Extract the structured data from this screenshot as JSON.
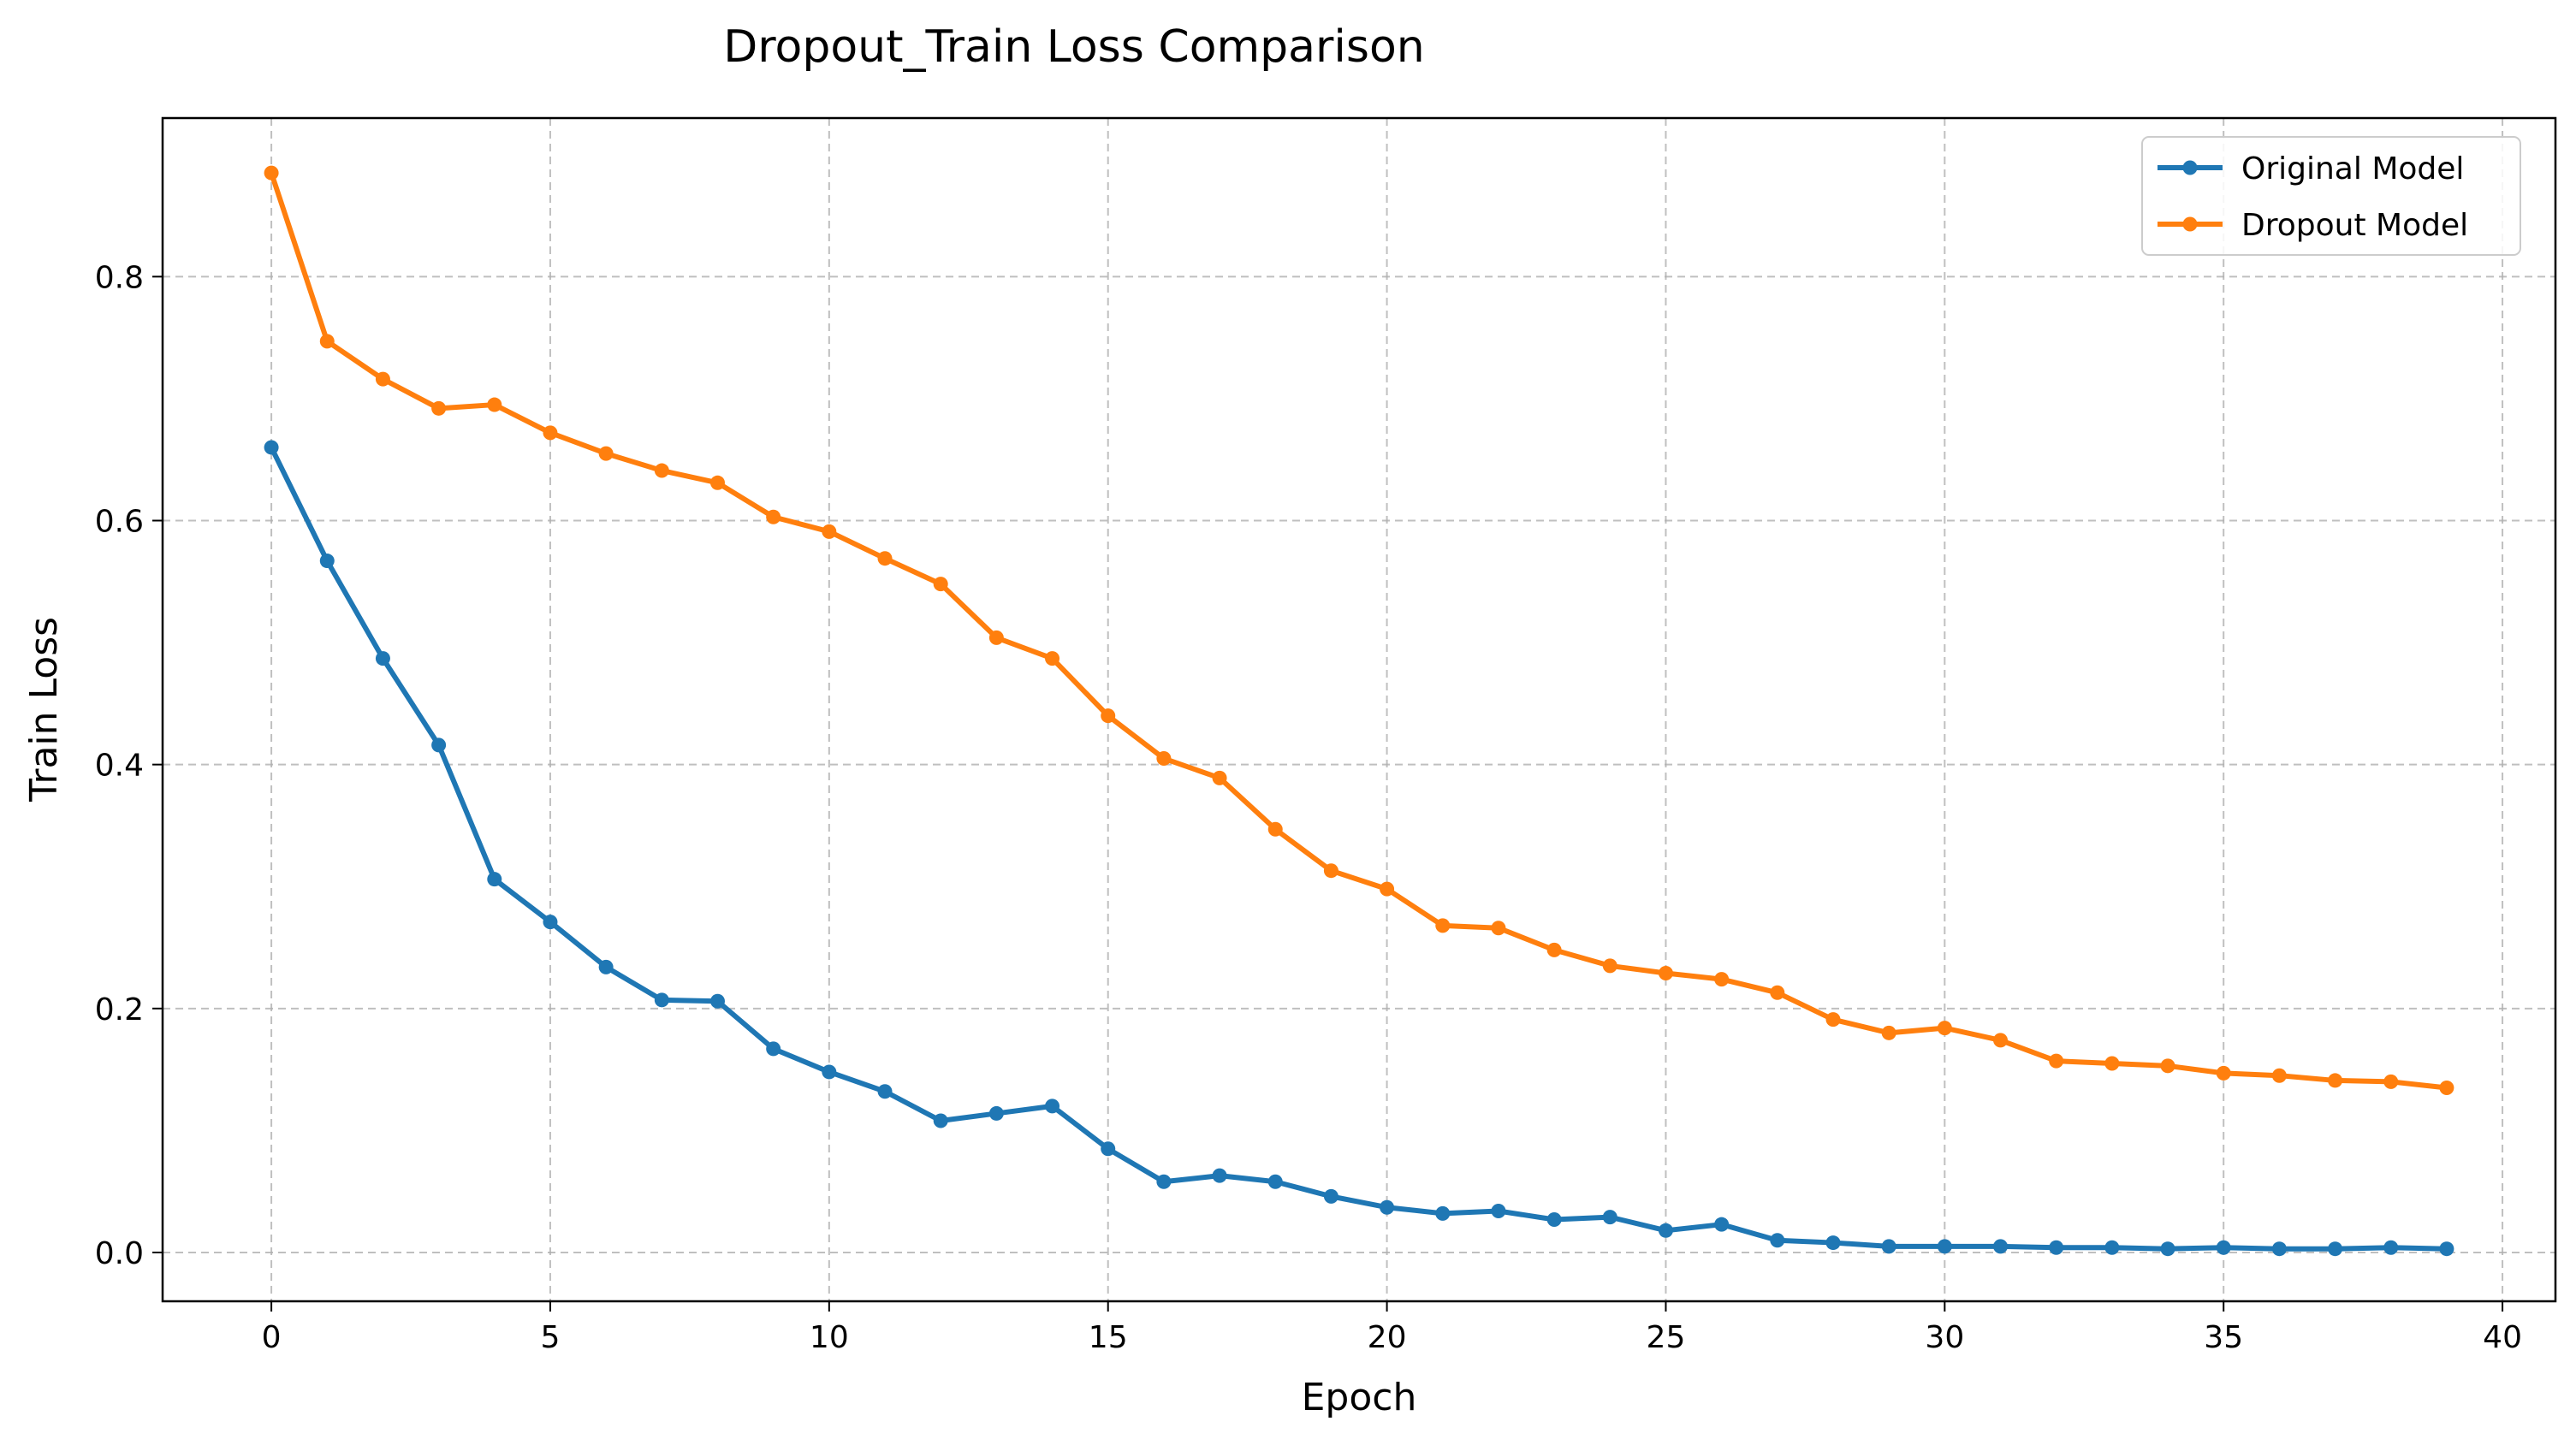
{
  "chart_data": {
    "type": "line",
    "title": "Dropout_Train Loss Comparison",
    "xlabel": "Epoch",
    "ylabel": "Train Loss",
    "xlim": [
      -1.95,
      40.95
    ],
    "ylim": [
      -0.04,
      0.93
    ],
    "xticks": [
      0,
      5,
      10,
      15,
      20,
      25,
      30,
      35,
      40
    ],
    "xtick_labels": [
      "0",
      "5",
      "10",
      "15",
      "20",
      "25",
      "30",
      "35",
      "40"
    ],
    "yticks": [
      0.0,
      0.2,
      0.4,
      0.6,
      0.8
    ],
    "ytick_labels": [
      "0.0",
      "0.2",
      "0.4",
      "0.6",
      "0.8"
    ],
    "grid": true,
    "legend_position": "top-right",
    "x": [
      0,
      1,
      2,
      3,
      4,
      5,
      6,
      7,
      8,
      9,
      10,
      11,
      12,
      13,
      14,
      15,
      16,
      17,
      18,
      19,
      20,
      21,
      22,
      23,
      24,
      25,
      26,
      27,
      28,
      29,
      30,
      31,
      32,
      33,
      34,
      35,
      36,
      37,
      38,
      39
    ],
    "series": [
      {
        "name": "Original Model",
        "color": "#1f77b4",
        "values": [
          0.66,
          0.567,
          0.487,
          0.416,
          0.306,
          0.271,
          0.234,
          0.207,
          0.206,
          0.167,
          0.148,
          0.132,
          0.108,
          0.114,
          0.12,
          0.085,
          0.058,
          0.063,
          0.058,
          0.046,
          0.037,
          0.032,
          0.034,
          0.027,
          0.029,
          0.018,
          0.023,
          0.01,
          0.008,
          0.005,
          0.005,
          0.005,
          0.004,
          0.004,
          0.003,
          0.004,
          0.003,
          0.003,
          0.004,
          0.003
        ]
      },
      {
        "name": "Dropout Model",
        "color": "#ff7f0e",
        "values": [
          0.885,
          0.747,
          0.716,
          0.692,
          0.695,
          0.672,
          0.655,
          0.641,
          0.631,
          0.603,
          0.591,
          0.569,
          0.548,
          0.504,
          0.487,
          0.44,
          0.405,
          0.389,
          0.347,
          0.313,
          0.298,
          0.268,
          0.266,
          0.248,
          0.235,
          0.229,
          0.224,
          0.213,
          0.191,
          0.18,
          0.184,
          0.174,
          0.157,
          0.155,
          0.153,
          0.147,
          0.145,
          0.141,
          0.14,
          0.135
        ]
      }
    ]
  }
}
